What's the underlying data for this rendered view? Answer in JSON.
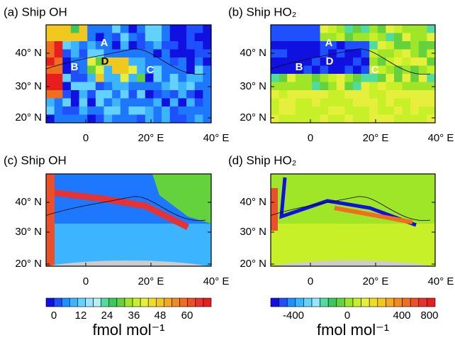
{
  "panels": [
    {
      "title": "(a) Ship OH",
      "markers": [
        "A",
        "B",
        "C",
        "D"
      ]
    },
    {
      "title": "(b) Ship HO₂",
      "markers": [
        "A",
        "B",
        "C",
        "D"
      ]
    },
    {
      "title": "(c) Ship OH"
    },
    {
      "title": "(d) Ship HO₂"
    }
  ],
  "lat_ticks": [
    "40° N",
    "30° N",
    "20° N"
  ],
  "lon_ticks": [
    "0",
    "20° E",
    "40° E"
  ],
  "colorbars": [
    {
      "ticks": [
        0,
        12,
        24,
        36,
        48,
        60
      ],
      "unit": "fmol mol⁻¹",
      "colors": [
        "#1010e0",
        "#1e50ff",
        "#1e90ff",
        "#3cb4ff",
        "#64d2ff",
        "#96e6ff",
        "#b4f0f0",
        "#50dca0",
        "#3cc85a",
        "#64d23c",
        "#a0e628",
        "#c8f028",
        "#e6f03c",
        "#f0dc28",
        "#f0c81e",
        "#f5aa1e",
        "#f08c1e",
        "#f06e1e",
        "#eb5028",
        "#e63232",
        "#e61e1e"
      ]
    },
    {
      "ticks": [
        -400,
        0,
        400,
        800
      ],
      "unit": "fmol mol⁻¹",
      "colors": [
        "#1010e0",
        "#1e50ff",
        "#1e90ff",
        "#3cb4ff",
        "#64d2ff",
        "#96e6ff",
        "#50dca0",
        "#3cc85a",
        "#64d23c",
        "#a0e628",
        "#c8f028",
        "#e6f03c",
        "#f0dc28",
        "#f0c81e",
        "#f5aa1e",
        "#f08c1e",
        "#f06e1e",
        "#eb5028",
        "#e63232",
        "#e61e1e"
      ]
    }
  ]
}
